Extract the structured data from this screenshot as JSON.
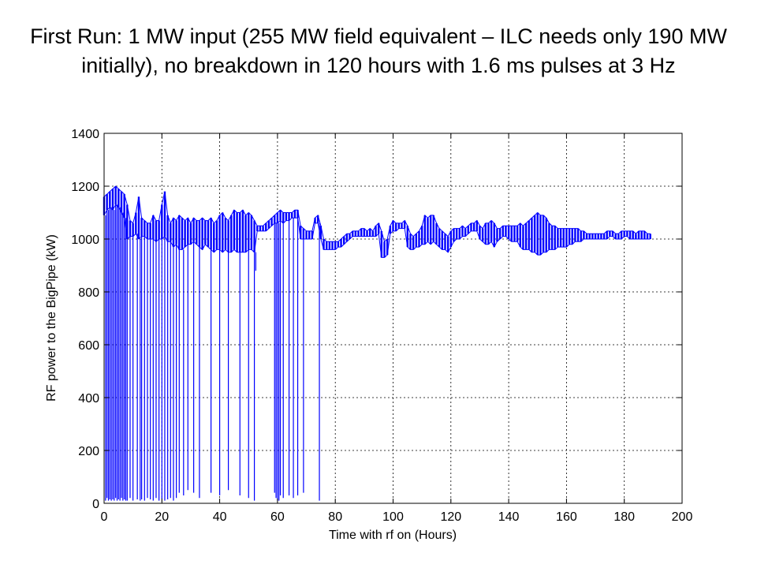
{
  "slide": {
    "title": "First Run: 1 MW input (255 MW field equivalent – ILC needs only 190 MW initially), no breakdown in 120 hours with 1.6 ms pulses at 3 Hz"
  },
  "chart_data": {
    "type": "line",
    "title": "",
    "xlabel": "Time with rf on (Hours)",
    "ylabel": "RF power  to the BigPipe (kW)",
    "xlim": [
      0,
      200
    ],
    "ylim": [
      0,
      1400
    ],
    "xticks": [
      0,
      20,
      40,
      60,
      80,
      100,
      120,
      140,
      160,
      180,
      200
    ],
    "yticks": [
      0,
      200,
      400,
      600,
      800,
      1000,
      1200,
      1400
    ],
    "grid": true,
    "line_color": "#0000ff",
    "series": [
      {
        "name": "",
        "band": [
          [
            0,
            1090,
            1160
          ],
          [
            1,
            1110,
            1170
          ],
          [
            2,
            1120,
            1180
          ],
          [
            3,
            1110,
            1190
          ],
          [
            4,
            1130,
            1200
          ],
          [
            5,
            1120,
            1190
          ],
          [
            6,
            1100,
            1180
          ],
          [
            7,
            1080,
            1170
          ],
          [
            8,
            1000,
            1130
          ],
          [
            9,
            1010,
            1070
          ],
          [
            10,
            1010,
            1060
          ],
          [
            11,
            1020,
            1100
          ],
          [
            12,
            1000,
            1160
          ],
          [
            13,
            1010,
            1080
          ],
          [
            14,
            1010,
            1070
          ],
          [
            15,
            1000,
            1060
          ],
          [
            16,
            1000,
            1060
          ],
          [
            17,
            1000,
            1090
          ],
          [
            18,
            990,
            1070
          ],
          [
            19,
            1000,
            1070
          ],
          [
            20,
            1000,
            1130
          ],
          [
            21,
            1010,
            1180
          ],
          [
            22,
            990,
            1090
          ],
          [
            23,
            990,
            1060
          ],
          [
            24,
            970,
            1080
          ],
          [
            25,
            980,
            1070
          ],
          [
            26,
            960,
            1090
          ],
          [
            27,
            960,
            1080
          ],
          [
            28,
            970,
            1070
          ],
          [
            29,
            980,
            1080
          ],
          [
            30,
            980,
            1060
          ],
          [
            31,
            990,
            1080
          ],
          [
            32,
            980,
            1070
          ],
          [
            33,
            970,
            1070
          ],
          [
            34,
            960,
            1080
          ],
          [
            35,
            980,
            1070
          ],
          [
            36,
            970,
            1070
          ],
          [
            37,
            960,
            1080
          ],
          [
            38,
            950,
            1060
          ],
          [
            39,
            960,
            1070
          ],
          [
            40,
            960,
            1090
          ],
          [
            41,
            950,
            1100
          ],
          [
            42,
            960,
            1080
          ],
          [
            43,
            950,
            1070
          ],
          [
            44,
            950,
            1090
          ],
          [
            45,
            960,
            1110
          ],
          [
            46,
            950,
            1100
          ],
          [
            47,
            950,
            1100
          ],
          [
            48,
            950,
            1110
          ],
          [
            49,
            950,
            1090
          ],
          [
            50,
            960,
            1100
          ],
          [
            51,
            960,
            1090
          ],
          [
            52,
            950,
            1070
          ],
          [
            53,
            1030,
            1050
          ],
          [
            54,
            1030,
            1050
          ],
          [
            55,
            1030,
            1050
          ],
          [
            56,
            1030,
            1060
          ],
          [
            57,
            1040,
            1070
          ],
          [
            58,
            1050,
            1080
          ],
          [
            59,
            1060,
            1090
          ],
          [
            60,
            1060,
            1100
          ],
          [
            61,
            1070,
            1110
          ],
          [
            62,
            1060,
            1100
          ],
          [
            63,
            1070,
            1100
          ],
          [
            64,
            1070,
            1100
          ],
          [
            65,
            1080,
            1100
          ],
          [
            66,
            1080,
            1110
          ],
          [
            67,
            1080,
            1110
          ],
          [
            68,
            1000,
            1050
          ],
          [
            69,
            1000,
            1040
          ],
          [
            70,
            1000,
            1030
          ],
          [
            71,
            1000,
            1030
          ],
          [
            72,
            1000,
            1030
          ],
          [
            73,
            1060,
            1080
          ],
          [
            74,
            1060,
            1090
          ],
          [
            75,
            1000,
            1050
          ],
          [
            76,
            960,
            1000
          ],
          [
            77,
            960,
            990
          ],
          [
            78,
            960,
            990
          ],
          [
            79,
            960,
            990
          ],
          [
            80,
            960,
            990
          ],
          [
            81,
            970,
            990
          ],
          [
            82,
            970,
            1000
          ],
          [
            83,
            980,
            1010
          ],
          [
            84,
            990,
            1020
          ],
          [
            85,
            1000,
            1020
          ],
          [
            86,
            1010,
            1030
          ],
          [
            87,
            1010,
            1030
          ],
          [
            88,
            1010,
            1030
          ],
          [
            89,
            1010,
            1040
          ],
          [
            90,
            1010,
            1040
          ],
          [
            91,
            1010,
            1030
          ],
          [
            92,
            1010,
            1040
          ],
          [
            93,
            1010,
            1030
          ],
          [
            94,
            1010,
            1050
          ],
          [
            95,
            1020,
            1060
          ],
          [
            96,
            930,
            1030
          ],
          [
            97,
            930,
            990
          ],
          [
            98,
            940,
            1000
          ],
          [
            99,
            1020,
            1050
          ],
          [
            100,
            1030,
            1070
          ],
          [
            101,
            1030,
            1060
          ],
          [
            102,
            1040,
            1060
          ],
          [
            103,
            1040,
            1060
          ],
          [
            104,
            1040,
            1070
          ],
          [
            105,
            970,
            1050
          ],
          [
            106,
            960,
            1020
          ],
          [
            107,
            960,
            1010
          ],
          [
            108,
            970,
            1020
          ],
          [
            109,
            970,
            1030
          ],
          [
            110,
            980,
            1050
          ],
          [
            111,
            980,
            1090
          ],
          [
            112,
            990,
            1080
          ],
          [
            113,
            980,
            1090
          ],
          [
            114,
            990,
            1090
          ],
          [
            115,
            980,
            1060
          ],
          [
            116,
            970,
            1040
          ],
          [
            117,
            960,
            1030
          ],
          [
            118,
            960,
            1020
          ],
          [
            119,
            950,
            1010
          ],
          [
            120,
            970,
            1030
          ],
          [
            121,
            990,
            1040
          ],
          [
            122,
            1000,
            1040
          ],
          [
            123,
            1000,
            1040
          ],
          [
            124,
            1010,
            1050
          ],
          [
            125,
            1010,
            1040
          ],
          [
            126,
            1020,
            1050
          ],
          [
            127,
            1030,
            1060
          ],
          [
            128,
            1030,
            1060
          ],
          [
            129,
            1030,
            1070
          ],
          [
            130,
            1000,
            1050
          ],
          [
            131,
            990,
            1040
          ],
          [
            132,
            980,
            1060
          ],
          [
            133,
            980,
            1060
          ],
          [
            134,
            990,
            1070
          ],
          [
            135,
            970,
            1060
          ],
          [
            136,
            990,
            1040
          ],
          [
            137,
            1000,
            1040
          ],
          [
            138,
            1010,
            1050
          ],
          [
            139,
            1010,
            1050
          ],
          [
            140,
            1000,
            1050
          ],
          [
            141,
            990,
            1050
          ],
          [
            142,
            990,
            1050
          ],
          [
            143,
            990,
            1050
          ],
          [
            144,
            970,
            1060
          ],
          [
            145,
            960,
            1050
          ],
          [
            146,
            960,
            1060
          ],
          [
            147,
            960,
            1070
          ],
          [
            148,
            950,
            1080
          ],
          [
            149,
            950,
            1090
          ],
          [
            150,
            940,
            1100
          ],
          [
            151,
            940,
            1090
          ],
          [
            152,
            950,
            1090
          ],
          [
            153,
            950,
            1080
          ],
          [
            154,
            960,
            1060
          ],
          [
            155,
            960,
            1050
          ],
          [
            156,
            960,
            1050
          ],
          [
            157,
            970,
            1040
          ],
          [
            158,
            970,
            1040
          ],
          [
            159,
            970,
            1040
          ],
          [
            160,
            970,
            1040
          ],
          [
            161,
            980,
            1040
          ],
          [
            162,
            980,
            1040
          ],
          [
            163,
            990,
            1040
          ],
          [
            164,
            990,
            1040
          ],
          [
            165,
            990,
            1030
          ],
          [
            166,
            1000,
            1030
          ],
          [
            167,
            1000,
            1020
          ],
          [
            168,
            1000,
            1020
          ],
          [
            169,
            1000,
            1020
          ],
          [
            170,
            1000,
            1020
          ],
          [
            171,
            1000,
            1020
          ],
          [
            172,
            1000,
            1020
          ],
          [
            173,
            1000,
            1020
          ],
          [
            174,
            1000,
            1030
          ],
          [
            175,
            1010,
            1030
          ],
          [
            176,
            1010,
            1030
          ],
          [
            177,
            1000,
            1020
          ],
          [
            178,
            1000,
            1020
          ],
          [
            179,
            1000,
            1030
          ],
          [
            180,
            1010,
            1030
          ],
          [
            181,
            1010,
            1030
          ],
          [
            182,
            1000,
            1030
          ],
          [
            183,
            1000,
            1030
          ],
          [
            184,
            1000,
            1020
          ],
          [
            185,
            1000,
            1030
          ],
          [
            186,
            1000,
            1030
          ],
          [
            187,
            1000,
            1030
          ],
          [
            188,
            1000,
            1020
          ],
          [
            189,
            1000,
            1020
          ]
        ],
        "dropouts": [
          [
            0.5,
            10
          ],
          [
            1.0,
            20
          ],
          [
            1.5,
            10
          ],
          [
            2.0,
            15
          ],
          [
            2.5,
            10
          ],
          [
            3.0,
            15
          ],
          [
            3.5,
            10
          ],
          [
            4.0,
            20
          ],
          [
            4.5,
            10
          ],
          [
            5.0,
            15
          ],
          [
            5.5,
            10
          ],
          [
            6.0,
            20
          ],
          [
            6.5,
            10
          ],
          [
            7.0,
            15
          ],
          [
            7.5,
            10
          ],
          [
            8.0,
            10
          ],
          [
            9.0,
            20
          ],
          [
            10.0,
            10
          ],
          [
            11.5,
            15
          ],
          [
            12.5,
            10
          ],
          [
            13.0,
            15
          ],
          [
            14.0,
            10
          ],
          [
            15.0,
            20
          ],
          [
            16.0,
            15
          ],
          [
            17.0,
            10
          ],
          [
            18.0,
            20
          ],
          [
            19.0,
            10
          ],
          [
            20.0,
            15
          ],
          [
            21.0,
            10
          ],
          [
            22.0,
            15
          ],
          [
            23.0,
            20
          ],
          [
            24.0,
            10
          ],
          [
            25.0,
            20
          ],
          [
            26.0,
            40
          ],
          [
            27.5,
            30
          ],
          [
            29.0,
            50
          ],
          [
            31.0,
            40
          ],
          [
            33.0,
            20
          ],
          [
            37.0,
            40
          ],
          [
            40.0,
            30
          ],
          [
            43.0,
            50
          ],
          [
            47.0,
            30
          ],
          [
            50.0,
            20
          ],
          [
            52.0,
            10
          ],
          [
            52.5,
            880
          ],
          [
            59.0,
            40
          ],
          [
            59.5,
            20
          ],
          [
            60.0,
            10
          ],
          [
            60.5,
            10
          ],
          [
            61.0,
            30
          ],
          [
            62.0,
            20
          ],
          [
            64.0,
            30
          ],
          [
            65.5,
            20
          ],
          [
            67.0,
            30
          ],
          [
            69.0,
            40
          ],
          [
            74.5,
            10
          ]
        ]
      }
    ]
  }
}
